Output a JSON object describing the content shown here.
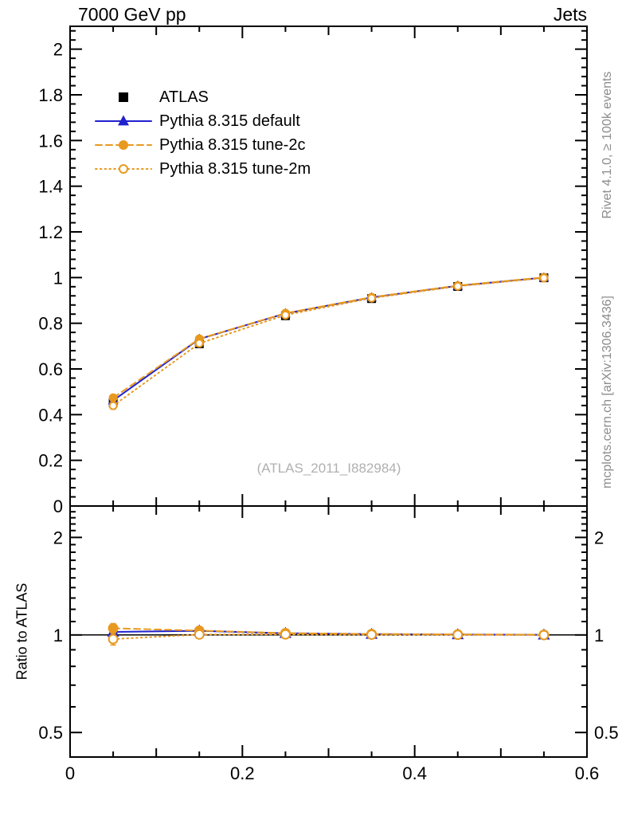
{
  "header": {
    "title_left": "7000 GeV pp",
    "title_right": "Jets"
  },
  "legend": {
    "items": [
      {
        "label": "ATLAS"
      },
      {
        "label": "Pythia 8.315 default"
      },
      {
        "label": "Pythia 8.315 tune-2c"
      },
      {
        "label": "Pythia 8.315 tune-2m"
      }
    ]
  },
  "watermark": "(ATLAS_2011_I882984)",
  "right_margin": {
    "top_text": "Rivet 4.1.0, ≥ 100k events",
    "bottom_text": "mcplots.cern.ch [arXiv:1306.3436]"
  },
  "colors": {
    "atlas": "#000000",
    "pythia_default": "#2021cf",
    "pythia_tunes": "#e8991f",
    "frame": "#000000",
    "gray_text": "#8c8c8c",
    "watermark_gray": "#b0b0b0"
  },
  "chart_data": [
    {
      "type": "line",
      "panel": "main",
      "title": "7000 GeV pp",
      "title_right": "Jets",
      "xlabel": "",
      "ylabel": "",
      "xlim": [
        0,
        0.6
      ],
      "ylim": [
        0,
        2.1
      ],
      "yscale": "linear",
      "grid": false,
      "legend_position": "top-left",
      "x": [
        0.05,
        0.15,
        0.25,
        0.35,
        0.45,
        0.55
      ],
      "series": [
        {
          "name": "ATLAS",
          "marker": "square-filled",
          "color": "#000000",
          "line": "none",
          "values": [
            0.452,
            0.71,
            0.833,
            0.908,
            0.961,
            0.999
          ],
          "errors": [
            0.018,
            0.01,
            0.007,
            0.005,
            0.003,
            0.002
          ]
        },
        {
          "name": "Pythia 8.315 default",
          "marker": "triangle-filled",
          "color": "#2021cf",
          "line": "solid",
          "values": [
            0.462,
            0.731,
            0.843,
            0.913,
            0.964,
            1.0
          ],
          "errors": [
            0.006,
            0.004,
            0.003,
            0.002,
            0.002,
            0.001
          ]
        },
        {
          "name": "Pythia 8.315 tune-2c",
          "marker": "circle-filled",
          "color": "#e8991f",
          "line": "dashed",
          "values": [
            0.474,
            0.732,
            0.844,
            0.914,
            0.965,
            1.001
          ],
          "errors": [
            0.012,
            0.005,
            0.003,
            0.002,
            0.002,
            0.001
          ]
        },
        {
          "name": "Pythia 8.315 tune-2m",
          "marker": "circle-open",
          "color": "#e8991f",
          "line": "dotted",
          "values": [
            0.439,
            0.712,
            0.836,
            0.91,
            0.962,
            0.998
          ],
          "errors": [
            0.015,
            0.006,
            0.004,
            0.003,
            0.002,
            0.001
          ]
        }
      ],
      "yticks": {
        "values": [
          0,
          0.2,
          0.4,
          0.6,
          0.8,
          1,
          1.2,
          1.4,
          1.6,
          1.8,
          2
        ],
        "labels": [
          "0",
          "0.2",
          "0.4",
          "0.6",
          "0.8",
          "1",
          "1.2",
          "1.4",
          "1.6",
          "1.8",
          "2"
        ]
      },
      "yticks_minor_step": 0.04,
      "xticks": {
        "values": [
          0,
          0.2,
          0.4,
          0.6
        ],
        "labels": []
      },
      "xticks_medium": [
        0.1,
        0.3,
        0.5
      ],
      "xticks_minor": [
        0.05,
        0.15,
        0.25,
        0.35,
        0.45,
        0.55
      ]
    },
    {
      "type": "line",
      "panel": "ratio",
      "ylabel": "Ratio to ATLAS",
      "xlim": [
        0,
        0.6
      ],
      "ylim": [
        0.42,
        2.5
      ],
      "yscale": "log",
      "grid": false,
      "reference_line": 1,
      "x": [
        0.05,
        0.15,
        0.25,
        0.35,
        0.45,
        0.55
      ],
      "series": [
        {
          "name": "Pythia 8.315 default",
          "marker": "triangle-filled",
          "color": "#2021cf",
          "line": "solid",
          "values": [
            1.022,
            1.03,
            1.012,
            1.006,
            1.003,
            1.001
          ],
          "errors": [
            0.015,
            0.006,
            0.004,
            0.003,
            0.002,
            0.002
          ]
        },
        {
          "name": "Pythia 8.315 tune-2c",
          "marker": "circle-filled",
          "color": "#e8991f",
          "line": "dashed",
          "values": [
            1.049,
            1.031,
            1.013,
            1.007,
            1.004,
            1.002
          ],
          "errors": [
            0.035,
            0.008,
            0.005,
            0.003,
            0.003,
            0.002
          ]
        },
        {
          "name": "Pythia 8.315 tune-2m",
          "marker": "circle-open",
          "color": "#e8991f",
          "line": "dotted",
          "values": [
            0.971,
            1.003,
            1.004,
            1.002,
            1.001,
            0.999
          ],
          "errors": [
            0.04,
            0.01,
            0.006,
            0.004,
            0.003,
            0.002
          ]
        }
      ],
      "yticks": {
        "values": [
          0.5,
          1,
          2
        ],
        "labels": [
          "0.5",
          "1",
          "2"
        ]
      },
      "yticks_minor": [
        0.6,
        0.7,
        0.8,
        0.9,
        1.1,
        1.2,
        1.3,
        1.4,
        1.5,
        1.6,
        1.7,
        1.8,
        1.9,
        2.1,
        2.2,
        2.3,
        2.4
      ],
      "xticks": {
        "values": [
          0,
          0.2,
          0.4,
          0.6
        ],
        "labels": [
          "0",
          "0.2",
          "0.4",
          "0.6"
        ]
      },
      "xticks_medium": [
        0.1,
        0.3,
        0.5
      ],
      "xticks_minor": [
        0.05,
        0.15,
        0.25,
        0.35,
        0.45,
        0.55
      ]
    }
  ]
}
